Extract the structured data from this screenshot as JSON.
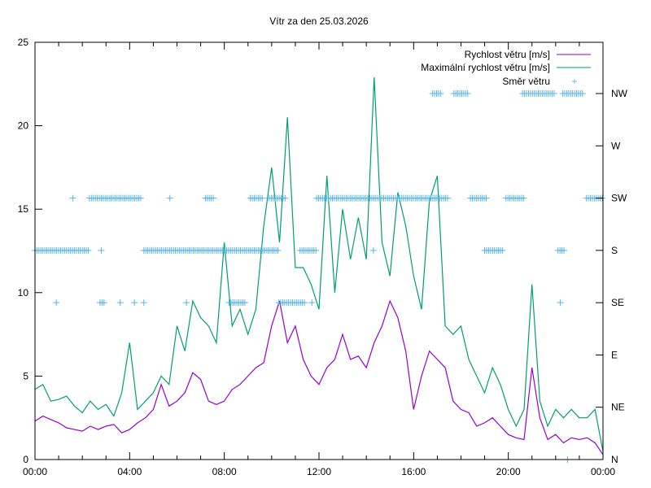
{
  "chart_data": {
    "type": "line",
    "title": "Vítr za den 25.03.2026",
    "xlabel": "",
    "ylabel": "",
    "xlim": [
      0,
      24
    ],
    "ylim": [
      0,
      25
    ],
    "x_ticks": [
      {
        "value": 0,
        "label": "00:00"
      },
      {
        "value": 4,
        "label": "04:00"
      },
      {
        "value": 8,
        "label": "08:00"
      },
      {
        "value": 12,
        "label": "12:00"
      },
      {
        "value": 16,
        "label": "16:00"
      },
      {
        "value": 20,
        "label": "20:00"
      },
      {
        "value": 24,
        "label": "00:00"
      }
    ],
    "y_ticks": [
      0,
      5,
      10,
      15,
      20,
      25
    ],
    "y2_ticks": [
      "N",
      "NE",
      "E",
      "SE",
      "S",
      "SW",
      "W",
      "NW"
    ],
    "legend_position": "top-right",
    "x_step_hours": 0.3333,
    "series": [
      {
        "name": "Rychlost větru [m/s]",
        "color": "#9400d3",
        "style": "line",
        "values": [
          2.3,
          2.6,
          2.4,
          2.2,
          1.9,
          1.8,
          1.7,
          2.0,
          1.8,
          2.0,
          2.1,
          1.6,
          1.8,
          2.2,
          2.5,
          3.0,
          4.5,
          3.2,
          3.5,
          4.0,
          5.2,
          4.8,
          3.5,
          3.3,
          3.5,
          4.2,
          4.5,
          5.0,
          5.5,
          5.8,
          8.0,
          9.5,
          7.0,
          8.0,
          6.0,
          5.0,
          4.5,
          5.5,
          6.0,
          7.5,
          6.0,
          6.2,
          5.5,
          7.0,
          8.0,
          9.5,
          8.5,
          6.5,
          3.0,
          5.0,
          6.5,
          6.0,
          5.5,
          3.5,
          3.0,
          2.8,
          2.0,
          2.2,
          2.5,
          2.0,
          1.5,
          1.3,
          1.2,
          5.5,
          2.5,
          1.2,
          1.5,
          1.0,
          1.3,
          1.2,
          1.3,
          1.0,
          0.3
        ]
      },
      {
        "name": "Maximální rychlost větru [m/s]",
        "color": "#009e73",
        "style": "line",
        "values": [
          4.2,
          4.5,
          3.5,
          3.6,
          3.8,
          3.2,
          2.8,
          3.5,
          3.0,
          3.3,
          2.6,
          4.0,
          7.0,
          3.0,
          3.5,
          4.0,
          5.0,
          4.5,
          8.0,
          6.5,
          9.5,
          8.5,
          8.0,
          7.0,
          13.0,
          8.0,
          9.0,
          7.5,
          9.0,
          14.0,
          17.5,
          13.0,
          20.5,
          11.5,
          11.5,
          10.5,
          9.0,
          17.0,
          10.0,
          15.0,
          12.0,
          14.5,
          12.0,
          22.9,
          13.0,
          11.0,
          16.0,
          14.0,
          11.0,
          9.0,
          15.5,
          17.0,
          8.0,
          7.5,
          8.0,
          6.0,
          5.0,
          4.0,
          5.5,
          4.5,
          3.0,
          2.0,
          3.0,
          10.5,
          3.5,
          2.0,
          3.0,
          2.5,
          3.0,
          2.5,
          2.5,
          3.0,
          0.5
        ]
      },
      {
        "name": "Směr větru",
        "color": "#56b4e9",
        "style": "points",
        "axis": "y2",
        "runs": [
          {
            "from": 0,
            "to": 2.25,
            "dir": "S"
          },
          {
            "from": 2.8,
            "to": 2.8,
            "dir": "S"
          },
          {
            "from": 4.6,
            "to": 10.3,
            "dir": "S"
          },
          {
            "from": 11.2,
            "to": 11.9,
            "dir": "S"
          },
          {
            "from": 14.3,
            "to": 14.3,
            "dir": "S"
          },
          {
            "from": 19.0,
            "to": 19.8,
            "dir": "S"
          },
          {
            "from": 22.1,
            "to": 22.4,
            "dir": "S"
          },
          {
            "from": 0.9,
            "to": 0.9,
            "dir": "SE"
          },
          {
            "from": 2.75,
            "to": 2.95,
            "dir": "SE"
          },
          {
            "from": 3.6,
            "to": 3.6,
            "dir": "SE"
          },
          {
            "from": 4.2,
            "to": 4.2,
            "dir": "SE"
          },
          {
            "from": 4.6,
            "to": 4.6,
            "dir": "SE"
          },
          {
            "from": 6.4,
            "to": 6.4,
            "dir": "SE"
          },
          {
            "from": 8.2,
            "to": 8.9,
            "dir": "SE"
          },
          {
            "from": 10.3,
            "to": 11.4,
            "dir": "SE"
          },
          {
            "from": 11.7,
            "to": 11.7,
            "dir": "SE"
          },
          {
            "from": 22.2,
            "to": 22.2,
            "dir": "SE"
          },
          {
            "from": 1.6,
            "to": 1.6,
            "dir": "SW"
          },
          {
            "from": 2.3,
            "to": 4.5,
            "dir": "SW"
          },
          {
            "from": 5.7,
            "to": 5.7,
            "dir": "SW"
          },
          {
            "from": 7.2,
            "to": 7.6,
            "dir": "SW"
          },
          {
            "from": 9.1,
            "to": 9.6,
            "dir": "SW"
          },
          {
            "from": 9.9,
            "to": 10.6,
            "dir": "SW"
          },
          {
            "from": 11.9,
            "to": 17.0,
            "dir": "SW"
          },
          {
            "from": 17.1,
            "to": 17.5,
            "dir": "SW"
          },
          {
            "from": 18.4,
            "to": 19.1,
            "dir": "SW"
          },
          {
            "from": 19.9,
            "to": 20.7,
            "dir": "SW"
          },
          {
            "from": 23.3,
            "to": 24.0,
            "dir": "SW"
          },
          {
            "from": 16.8,
            "to": 17.2,
            "dir": "NW"
          },
          {
            "from": 17.7,
            "to": 18.3,
            "dir": "NW"
          },
          {
            "from": 20.6,
            "to": 22.0,
            "dir": "NW"
          },
          {
            "from": 22.3,
            "to": 23.2,
            "dir": "NW"
          },
          {
            "from": 22.5,
            "to": 22.5,
            "dir": "N"
          }
        ]
      }
    ]
  }
}
